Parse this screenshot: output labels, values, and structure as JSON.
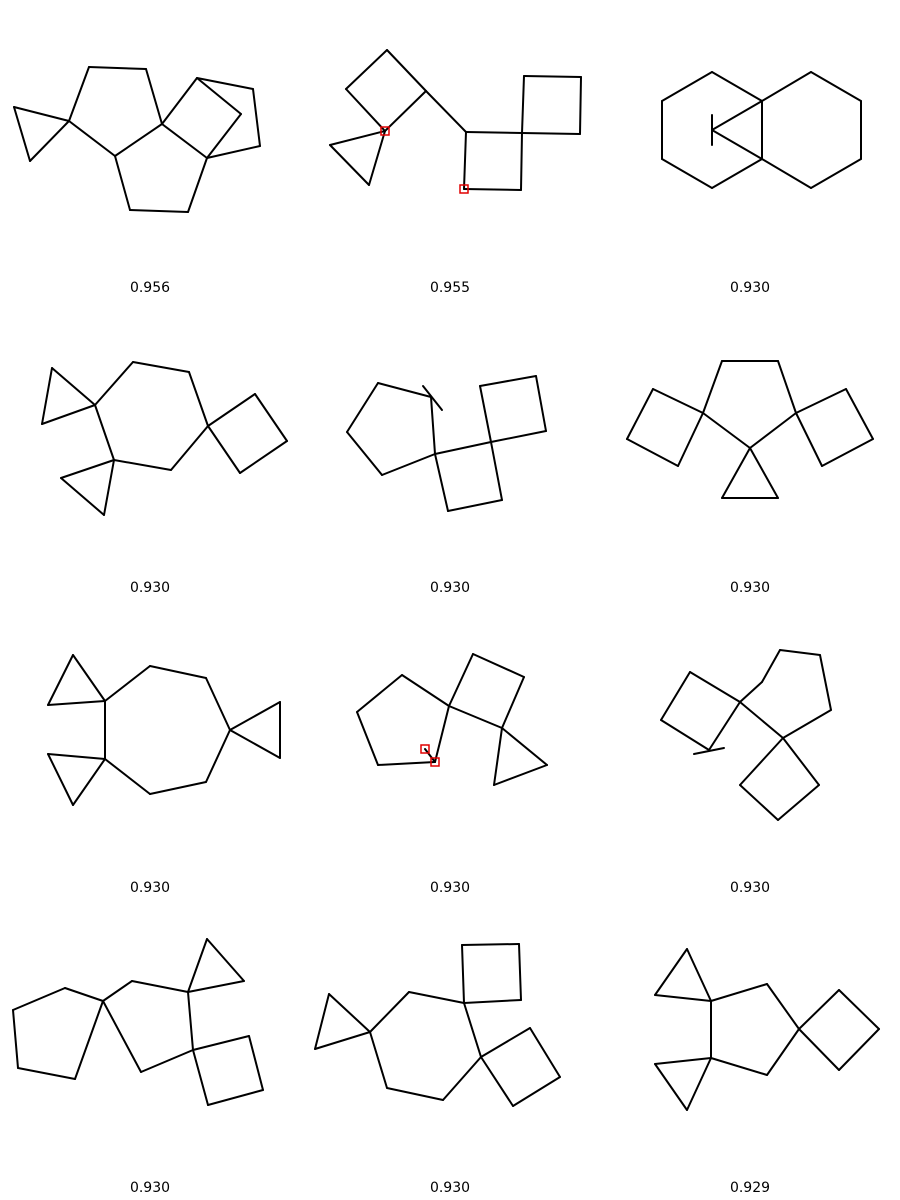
{
  "colors": {
    "bond": "#000000",
    "highlight": "#e00000",
    "background": "#ffffff"
  },
  "molecules": [
    {
      "score": "0.956"
    },
    {
      "score": "0.955"
    },
    {
      "score": "0.930"
    },
    {
      "score": "0.930"
    },
    {
      "score": "0.930"
    },
    {
      "score": "0.930"
    },
    {
      "score": "0.930"
    },
    {
      "score": "0.930"
    },
    {
      "score": "0.930"
    },
    {
      "score": "0.930"
    },
    {
      "score": "0.930"
    },
    {
      "score": "0.929"
    }
  ]
}
